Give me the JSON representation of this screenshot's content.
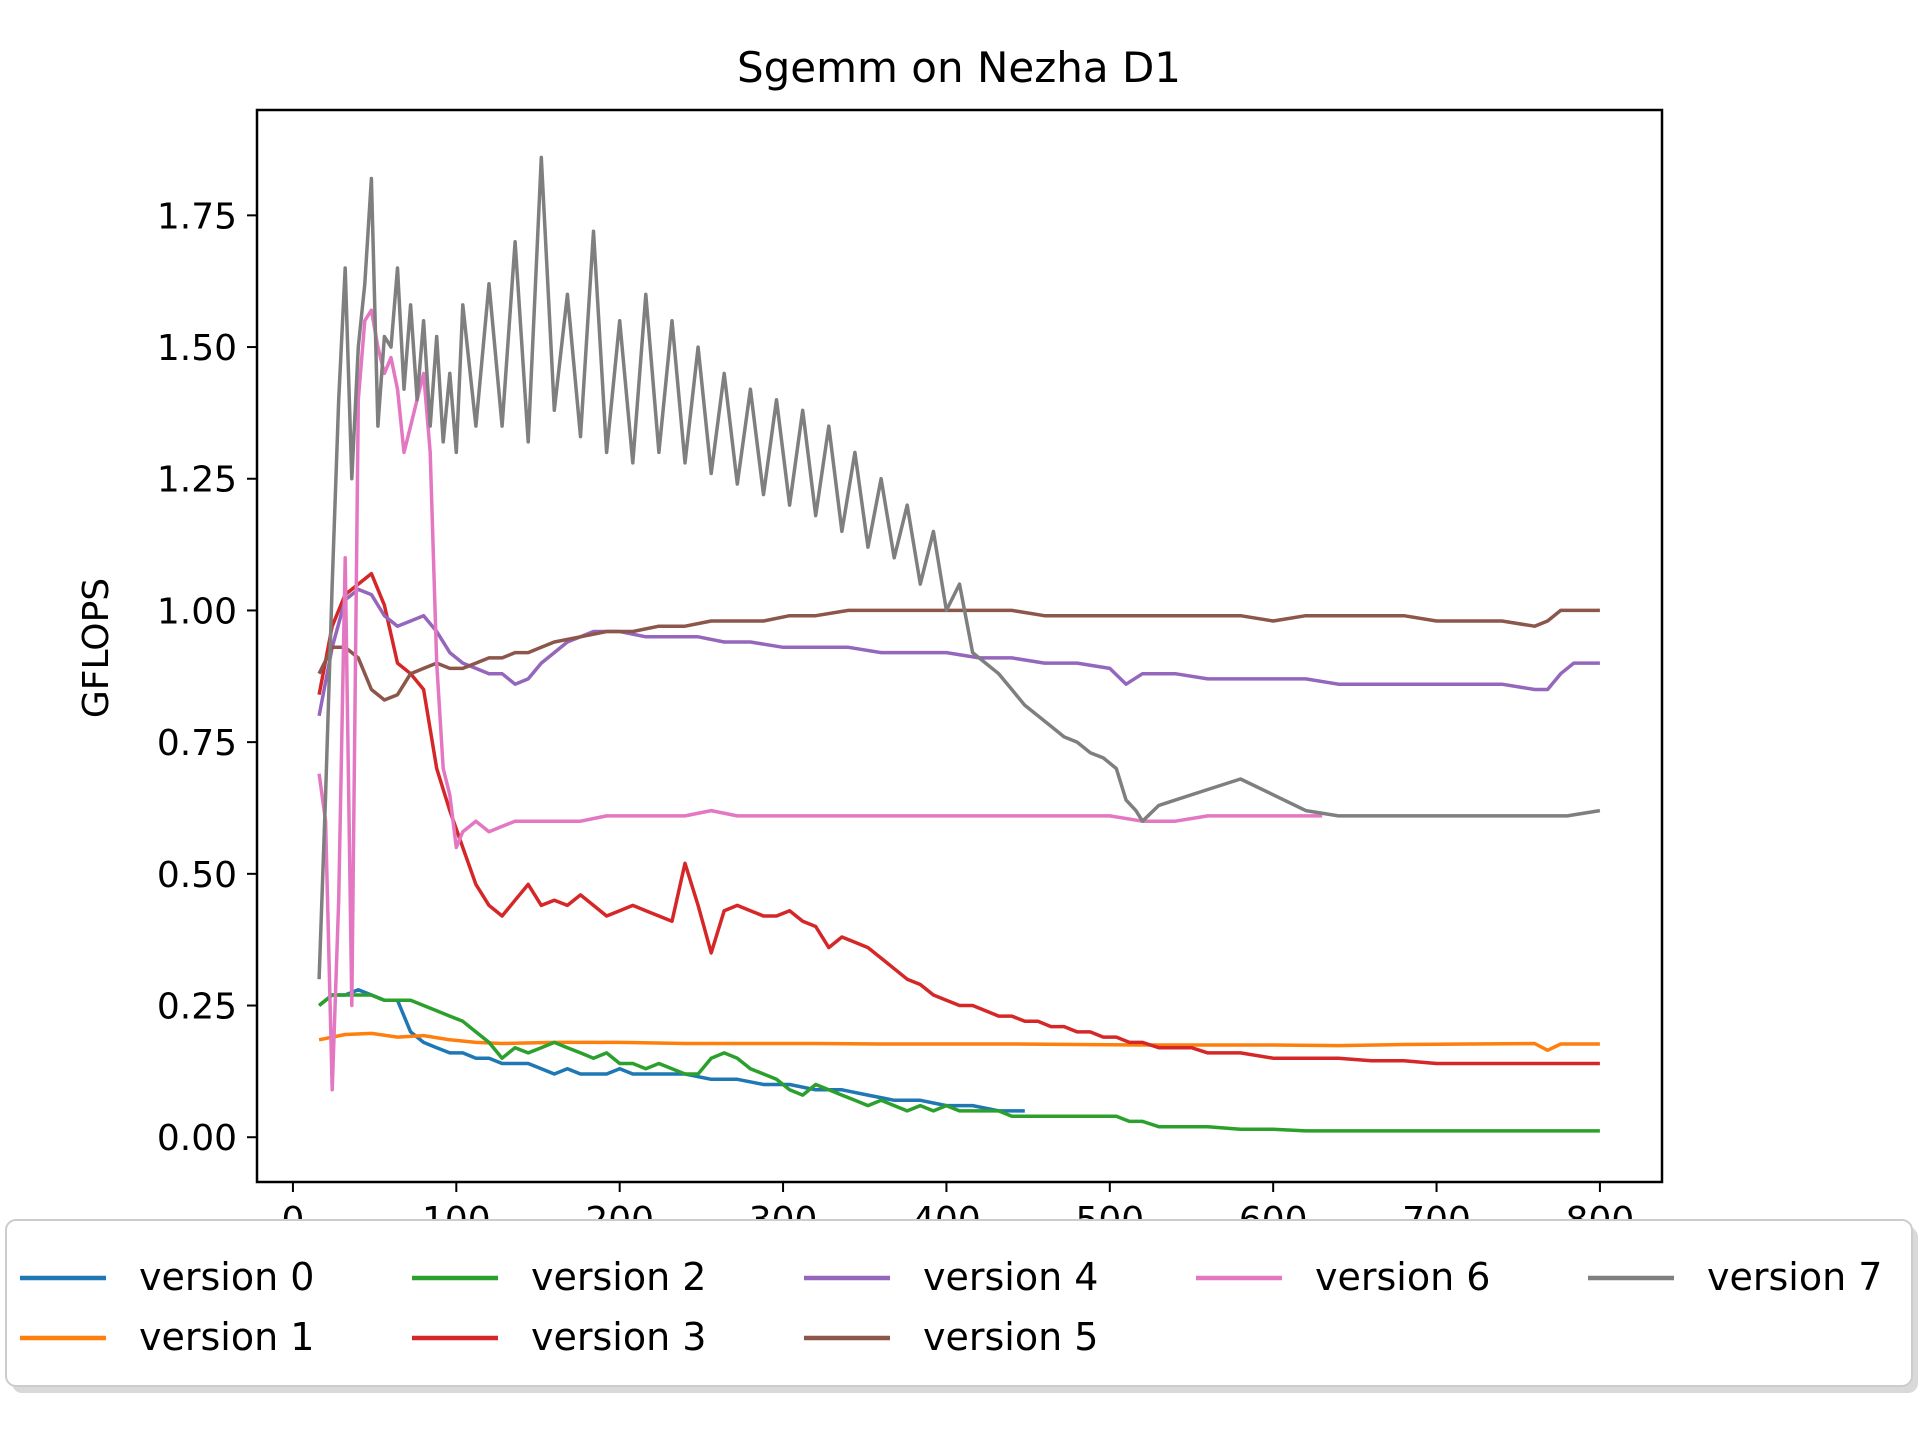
{
  "chart_data": {
    "type": "line",
    "title": "Sgemm on Nezha D1",
    "xlabel": "",
    "ylabel": "GFLOPS",
    "xlim": [
      -22,
      838
    ],
    "ylim": [
      -0.085,
      1.95
    ],
    "xticks": [
      0,
      100,
      200,
      300,
      400,
      500,
      600,
      700,
      800
    ],
    "xtick_labels": [
      "0",
      "100",
      "200",
      "300",
      "400",
      "500",
      "600",
      "700",
      "800"
    ],
    "yticks": [
      0.0,
      0.25,
      0.5,
      0.75,
      1.0,
      1.25,
      1.5,
      1.75
    ],
    "ytick_labels": [
      "0.00",
      "0.25",
      "0.50",
      "0.75",
      "1.00",
      "1.25",
      "1.50",
      "1.75"
    ],
    "grid": false,
    "legend_placement": "bottom, below plot, 5 columns",
    "series": [
      {
        "name": "version 0",
        "color": "#1f77b4",
        "x": [
          16,
          24,
          32,
          40,
          48,
          56,
          64,
          72,
          80,
          88,
          96,
          104,
          112,
          120,
          128,
          136,
          144,
          152,
          160,
          168,
          176,
          184,
          192,
          200,
          208,
          216,
          224,
          240,
          256,
          272,
          288,
          304,
          320,
          336,
          352,
          368,
          384,
          400,
          416,
          432,
          448
        ],
        "y": [
          0.25,
          0.27,
          0.27,
          0.28,
          0.27,
          0.26,
          0.26,
          0.2,
          0.18,
          0.17,
          0.16,
          0.16,
          0.15,
          0.15,
          0.14,
          0.14,
          0.14,
          0.13,
          0.12,
          0.13,
          0.12,
          0.12,
          0.12,
          0.13,
          0.12,
          0.12,
          0.12,
          0.12,
          0.11,
          0.11,
          0.1,
          0.1,
          0.09,
          0.09,
          0.08,
          0.07,
          0.07,
          0.06,
          0.06,
          0.05,
          0.05
        ]
      },
      {
        "name": "version 1",
        "color": "#ff7f0e",
        "x": [
          16,
          32,
          48,
          64,
          80,
          96,
          112,
          128,
          160,
          200,
          240,
          280,
          320,
          360,
          400,
          440,
          480,
          520,
          560,
          600,
          640,
          680,
          720,
          760,
          768,
          776,
          800
        ],
        "y": [
          0.185,
          0.195,
          0.197,
          0.19,
          0.193,
          0.185,
          0.18,
          0.178,
          0.18,
          0.18,
          0.178,
          0.178,
          0.178,
          0.177,
          0.177,
          0.177,
          0.176,
          0.175,
          0.175,
          0.175,
          0.174,
          0.176,
          0.177,
          0.178,
          0.165,
          0.177,
          0.177
        ]
      },
      {
        "name": "version 2",
        "color": "#2ca02c",
        "x": [
          16,
          24,
          32,
          40,
          48,
          56,
          64,
          72,
          80,
          88,
          96,
          104,
          112,
          120,
          128,
          136,
          144,
          152,
          160,
          168,
          176,
          184,
          192,
          200,
          208,
          216,
          224,
          232,
          240,
          248,
          256,
          264,
          272,
          280,
          288,
          296,
          304,
          312,
          320,
          328,
          336,
          344,
          352,
          360,
          368,
          376,
          384,
          392,
          400,
          408,
          416,
          424,
          432,
          440,
          448,
          456,
          464,
          472,
          480,
          488,
          496,
          504,
          512,
          520,
          530,
          540,
          550,
          560,
          580,
          600,
          620,
          640,
          660,
          680,
          700,
          720,
          740,
          760,
          780,
          800
        ],
        "y": [
          0.25,
          0.27,
          0.27,
          0.27,
          0.27,
          0.26,
          0.26,
          0.26,
          0.25,
          0.24,
          0.23,
          0.22,
          0.2,
          0.18,
          0.15,
          0.17,
          0.16,
          0.17,
          0.18,
          0.17,
          0.16,
          0.15,
          0.16,
          0.14,
          0.14,
          0.13,
          0.14,
          0.13,
          0.12,
          0.12,
          0.15,
          0.16,
          0.15,
          0.13,
          0.12,
          0.11,
          0.09,
          0.08,
          0.1,
          0.09,
          0.08,
          0.07,
          0.06,
          0.07,
          0.06,
          0.05,
          0.06,
          0.05,
          0.06,
          0.05,
          0.05,
          0.05,
          0.05,
          0.04,
          0.04,
          0.04,
          0.04,
          0.04,
          0.04,
          0.04,
          0.04,
          0.04,
          0.03,
          0.03,
          0.02,
          0.02,
          0.02,
          0.02,
          0.015,
          0.015,
          0.012,
          0.012,
          0.012,
          0.012,
          0.012,
          0.012,
          0.012,
          0.012,
          0.012,
          0.012
        ]
      },
      {
        "name": "version 3",
        "color": "#d62728",
        "x": [
          16,
          24,
          32,
          40,
          48,
          56,
          64,
          72,
          80,
          88,
          96,
          104,
          112,
          120,
          128,
          136,
          144,
          152,
          160,
          168,
          176,
          184,
          192,
          200,
          208,
          216,
          224,
          232,
          240,
          248,
          256,
          264,
          272,
          280,
          288,
          296,
          304,
          312,
          320,
          328,
          336,
          344,
          352,
          360,
          368,
          376,
          384,
          392,
          400,
          408,
          416,
          424,
          432,
          440,
          448,
          456,
          464,
          472,
          480,
          488,
          496,
          504,
          512,
          520,
          530,
          540,
          550,
          560,
          580,
          600,
          620,
          640,
          660,
          680,
          700,
          720,
          740,
          760,
          780,
          800
        ],
        "y": [
          0.84,
          0.97,
          1.03,
          1.05,
          1.07,
          1.01,
          0.9,
          0.88,
          0.85,
          0.7,
          0.62,
          0.55,
          0.48,
          0.44,
          0.42,
          0.45,
          0.48,
          0.44,
          0.45,
          0.44,
          0.46,
          0.44,
          0.42,
          0.43,
          0.44,
          0.43,
          0.42,
          0.41,
          0.52,
          0.44,
          0.35,
          0.43,
          0.44,
          0.43,
          0.42,
          0.42,
          0.43,
          0.41,
          0.4,
          0.36,
          0.38,
          0.37,
          0.36,
          0.34,
          0.32,
          0.3,
          0.29,
          0.27,
          0.26,
          0.25,
          0.25,
          0.24,
          0.23,
          0.23,
          0.22,
          0.22,
          0.21,
          0.21,
          0.2,
          0.2,
          0.19,
          0.19,
          0.18,
          0.18,
          0.17,
          0.17,
          0.17,
          0.16,
          0.16,
          0.15,
          0.15,
          0.15,
          0.145,
          0.145,
          0.14,
          0.14,
          0.14,
          0.14,
          0.14,
          0.14
        ]
      },
      {
        "name": "version 4",
        "color": "#9467bd",
        "x": [
          16,
          24,
          32,
          40,
          48,
          56,
          64,
          72,
          80,
          88,
          96,
          104,
          112,
          120,
          128,
          136,
          144,
          152,
          160,
          168,
          176,
          184,
          192,
          200,
          216,
          232,
          248,
          264,
          280,
          300,
          320,
          340,
          360,
          380,
          400,
          420,
          440,
          460,
          480,
          500,
          510,
          520,
          540,
          560,
          580,
          600,
          620,
          640,
          660,
          680,
          700,
          720,
          740,
          760,
          768,
          776,
          784,
          800
        ],
        "y": [
          0.8,
          0.93,
          1.02,
          1.04,
          1.03,
          0.99,
          0.97,
          0.98,
          0.99,
          0.96,
          0.92,
          0.9,
          0.89,
          0.88,
          0.88,
          0.86,
          0.87,
          0.9,
          0.92,
          0.94,
          0.95,
          0.96,
          0.96,
          0.96,
          0.95,
          0.95,
          0.95,
          0.94,
          0.94,
          0.93,
          0.93,
          0.93,
          0.92,
          0.92,
          0.92,
          0.91,
          0.91,
          0.9,
          0.9,
          0.89,
          0.86,
          0.88,
          0.88,
          0.87,
          0.87,
          0.87,
          0.87,
          0.86,
          0.86,
          0.86,
          0.86,
          0.86,
          0.86,
          0.85,
          0.85,
          0.88,
          0.9,
          0.9
        ]
      },
      {
        "name": "version 5",
        "color": "#8c564b",
        "x": [
          16,
          24,
          32,
          40,
          48,
          56,
          64,
          72,
          80,
          88,
          96,
          104,
          112,
          120,
          128,
          136,
          144,
          152,
          160,
          176,
          192,
          208,
          224,
          240,
          256,
          272,
          288,
          304,
          320,
          340,
          360,
          380,
          400,
          420,
          440,
          460,
          480,
          500,
          520,
          540,
          560,
          580,
          600,
          620,
          640,
          660,
          680,
          700,
          720,
          740,
          760,
          768,
          776,
          784,
          800
        ],
        "y": [
          0.88,
          0.93,
          0.93,
          0.91,
          0.85,
          0.83,
          0.84,
          0.88,
          0.89,
          0.9,
          0.89,
          0.89,
          0.9,
          0.91,
          0.91,
          0.92,
          0.92,
          0.93,
          0.94,
          0.95,
          0.96,
          0.96,
          0.97,
          0.97,
          0.98,
          0.98,
          0.98,
          0.99,
          0.99,
          1.0,
          1.0,
          1.0,
          1.0,
          1.0,
          1.0,
          0.99,
          0.99,
          0.99,
          0.99,
          0.99,
          0.99,
          0.99,
          0.98,
          0.99,
          0.99,
          0.99,
          0.99,
          0.98,
          0.98,
          0.98,
          0.97,
          0.98,
          1.0,
          1.0,
          1.0
        ]
      },
      {
        "name": "version 6",
        "color": "#e377c2",
        "x": [
          16,
          20,
          24,
          28,
          32,
          36,
          40,
          44,
          48,
          52,
          56,
          60,
          64,
          68,
          72,
          76,
          80,
          84,
          88,
          92,
          96,
          100,
          104,
          112,
          120,
          128,
          136,
          144,
          152,
          160,
          176,
          192,
          208,
          224,
          240,
          256,
          272,
          288,
          304,
          320,
          340,
          360,
          380,
          400,
          420,
          440,
          460,
          480,
          500,
          520,
          540,
          560,
          580,
          600,
          620,
          630
        ],
        "y": [
          0.69,
          0.6,
          0.09,
          0.45,
          1.1,
          0.25,
          1.4,
          1.55,
          1.57,
          1.5,
          1.45,
          1.48,
          1.42,
          1.3,
          1.35,
          1.4,
          1.45,
          1.3,
          0.9,
          0.7,
          0.65,
          0.55,
          0.58,
          0.6,
          0.58,
          0.59,
          0.6,
          0.6,
          0.6,
          0.6,
          0.6,
          0.61,
          0.61,
          0.61,
          0.61,
          0.62,
          0.61,
          0.61,
          0.61,
          0.61,
          0.61,
          0.61,
          0.61,
          0.61,
          0.61,
          0.61,
          0.61,
          0.61,
          0.61,
          0.6,
          0.6,
          0.61,
          0.61,
          0.61,
          0.61,
          0.61
        ]
      },
      {
        "name": "version 7",
        "color": "#7f7f7f",
        "x": [
          16,
          20,
          24,
          28,
          32,
          36,
          40,
          44,
          48,
          52,
          56,
          60,
          64,
          68,
          72,
          76,
          80,
          84,
          88,
          92,
          96,
          100,
          104,
          112,
          120,
          128,
          136,
          144,
          152,
          160,
          168,
          176,
          184,
          192,
          200,
          208,
          216,
          224,
          232,
          240,
          248,
          256,
          264,
          272,
          280,
          288,
          296,
          304,
          312,
          320,
          328,
          336,
          344,
          352,
          360,
          368,
          376,
          384,
          392,
          400,
          408,
          416,
          424,
          432,
          440,
          448,
          456,
          464,
          472,
          480,
          488,
          496,
          504,
          510,
          516,
          520,
          530,
          540,
          560,
          580,
          600,
          620,
          640,
          660,
          680,
          700,
          720,
          740,
          760,
          780,
          800
        ],
        "y": [
          0.3,
          0.65,
          1.05,
          1.4,
          1.65,
          1.25,
          1.5,
          1.62,
          1.82,
          1.35,
          1.52,
          1.5,
          1.65,
          1.42,
          1.58,
          1.4,
          1.55,
          1.35,
          1.52,
          1.32,
          1.45,
          1.3,
          1.58,
          1.35,
          1.62,
          1.35,
          1.7,
          1.32,
          1.86,
          1.38,
          1.6,
          1.33,
          1.72,
          1.3,
          1.55,
          1.28,
          1.6,
          1.3,
          1.55,
          1.28,
          1.5,
          1.26,
          1.45,
          1.24,
          1.42,
          1.22,
          1.4,
          1.2,
          1.38,
          1.18,
          1.35,
          1.15,
          1.3,
          1.12,
          1.25,
          1.1,
          1.2,
          1.05,
          1.15,
          1.0,
          1.05,
          0.92,
          0.9,
          0.88,
          0.85,
          0.82,
          0.8,
          0.78,
          0.76,
          0.75,
          0.73,
          0.72,
          0.7,
          0.64,
          0.62,
          0.6,
          0.63,
          0.64,
          0.66,
          0.68,
          0.65,
          0.62,
          0.61,
          0.61,
          0.61,
          0.61,
          0.61,
          0.61,
          0.61,
          0.61,
          0.62
        ]
      }
    ]
  }
}
